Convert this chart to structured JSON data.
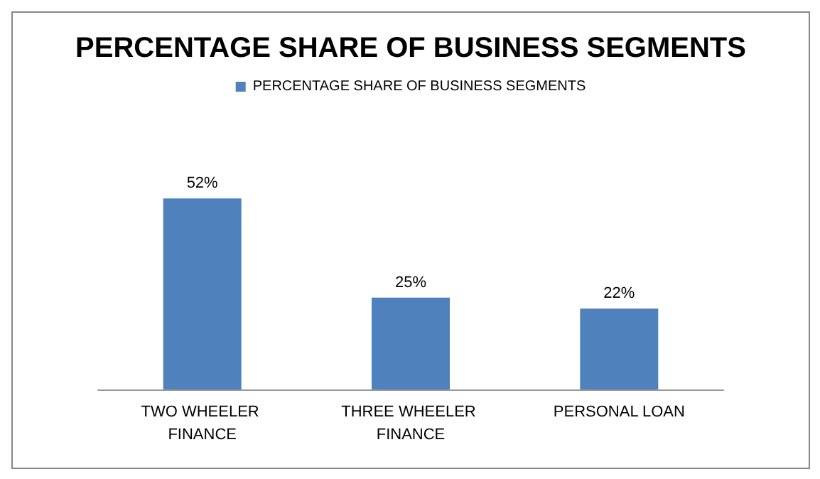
{
  "chart_data": {
    "type": "bar",
    "title": "PERCENTAGE SHARE OF BUSINESS SEGMENTS",
    "categories": [
      "TWO WHEELER FINANCE",
      "THREE WHEELER FINANCE",
      "PERSONAL LOAN"
    ],
    "series": [
      {
        "name": "PERCENTAGE SHARE OF BUSINESS SEGMENTS",
        "color": "#4f81bd",
        "values": [
          52,
          25,
          22
        ],
        "value_labels": [
          "52%",
          "25%",
          "22%"
        ]
      }
    ],
    "legend": "top"
  }
}
